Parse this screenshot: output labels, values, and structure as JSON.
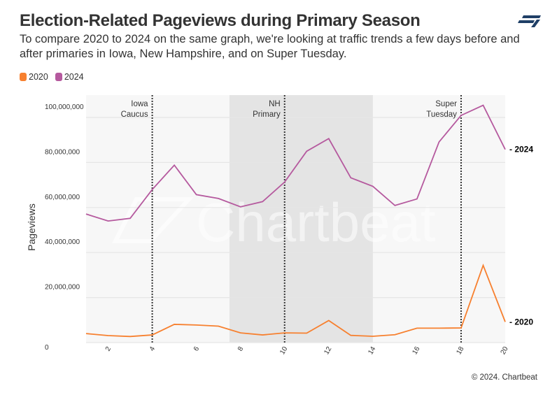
{
  "header": {
    "title": "Election-Related Pageviews during Primary Season",
    "subtitle": "To compare 2020 to 2024 on the same graph, we're looking at traffic trends a few days before and after primaries in Iowa, New Hampshire, and on Super Tuesday.",
    "logo_icon": "chartbeat-logo-icon"
  },
  "footer": {
    "copyright": "© 2024. Chartbeat"
  },
  "watermark": "Chartbeat",
  "chart_data": {
    "type": "line",
    "title": "Election-Related Pageviews during Primary Season",
    "xlabel": "",
    "ylabel": "Pageviews",
    "x": [
      1,
      2,
      3,
      4,
      5,
      6,
      7,
      8,
      9,
      10,
      11,
      12,
      13,
      14,
      15,
      16,
      17,
      18,
      19,
      20
    ],
    "xlim": [
      1,
      20
    ],
    "ylim": [
      0,
      110000000
    ],
    "xticks": [
      2,
      4,
      6,
      8,
      10,
      12,
      14,
      16,
      18,
      20
    ],
    "yticks": [
      0,
      20000000,
      40000000,
      60000000,
      80000000,
      100000000
    ],
    "ytick_labels": [
      "0",
      "20,000,000",
      "40,000,000",
      "60,000,000",
      "80,000,000",
      "100,000,000"
    ],
    "grid": true,
    "legend_position": "top-left",
    "series": [
      {
        "name": "2020",
        "color": "#f7802f",
        "end_label": "- 2020",
        "values": [
          4000000,
          3100000,
          2700000,
          3400000,
          8100000,
          7800000,
          7300000,
          4300000,
          3400000,
          4300000,
          4200000,
          9800000,
          3200000,
          2800000,
          3500000,
          6400000,
          6400000,
          6500000,
          34300000,
          9200000
        ]
      },
      {
        "name": "2024",
        "color": "#b5599e",
        "end_label": "- 2024",
        "values": [
          57100000,
          54000000,
          55200000,
          68000000,
          78800000,
          65700000,
          64000000,
          60300000,
          62600000,
          71300000,
          85000000,
          90600000,
          73200000,
          69400000,
          60900000,
          63800000,
          89100000,
          100900000,
          105400000,
          85800000
        ]
      }
    ],
    "shaded_band": {
      "from": 7.5,
      "to": 14,
      "color": "#e4e4e4"
    },
    "annotations": [
      {
        "x": 4,
        "label_lines": [
          "Iowa",
          "Caucus"
        ]
      },
      {
        "x": 10,
        "label_lines": [
          "NH",
          "Primary"
        ]
      },
      {
        "x": 18,
        "label_lines": [
          "Super",
          "Tuesday"
        ]
      }
    ]
  }
}
